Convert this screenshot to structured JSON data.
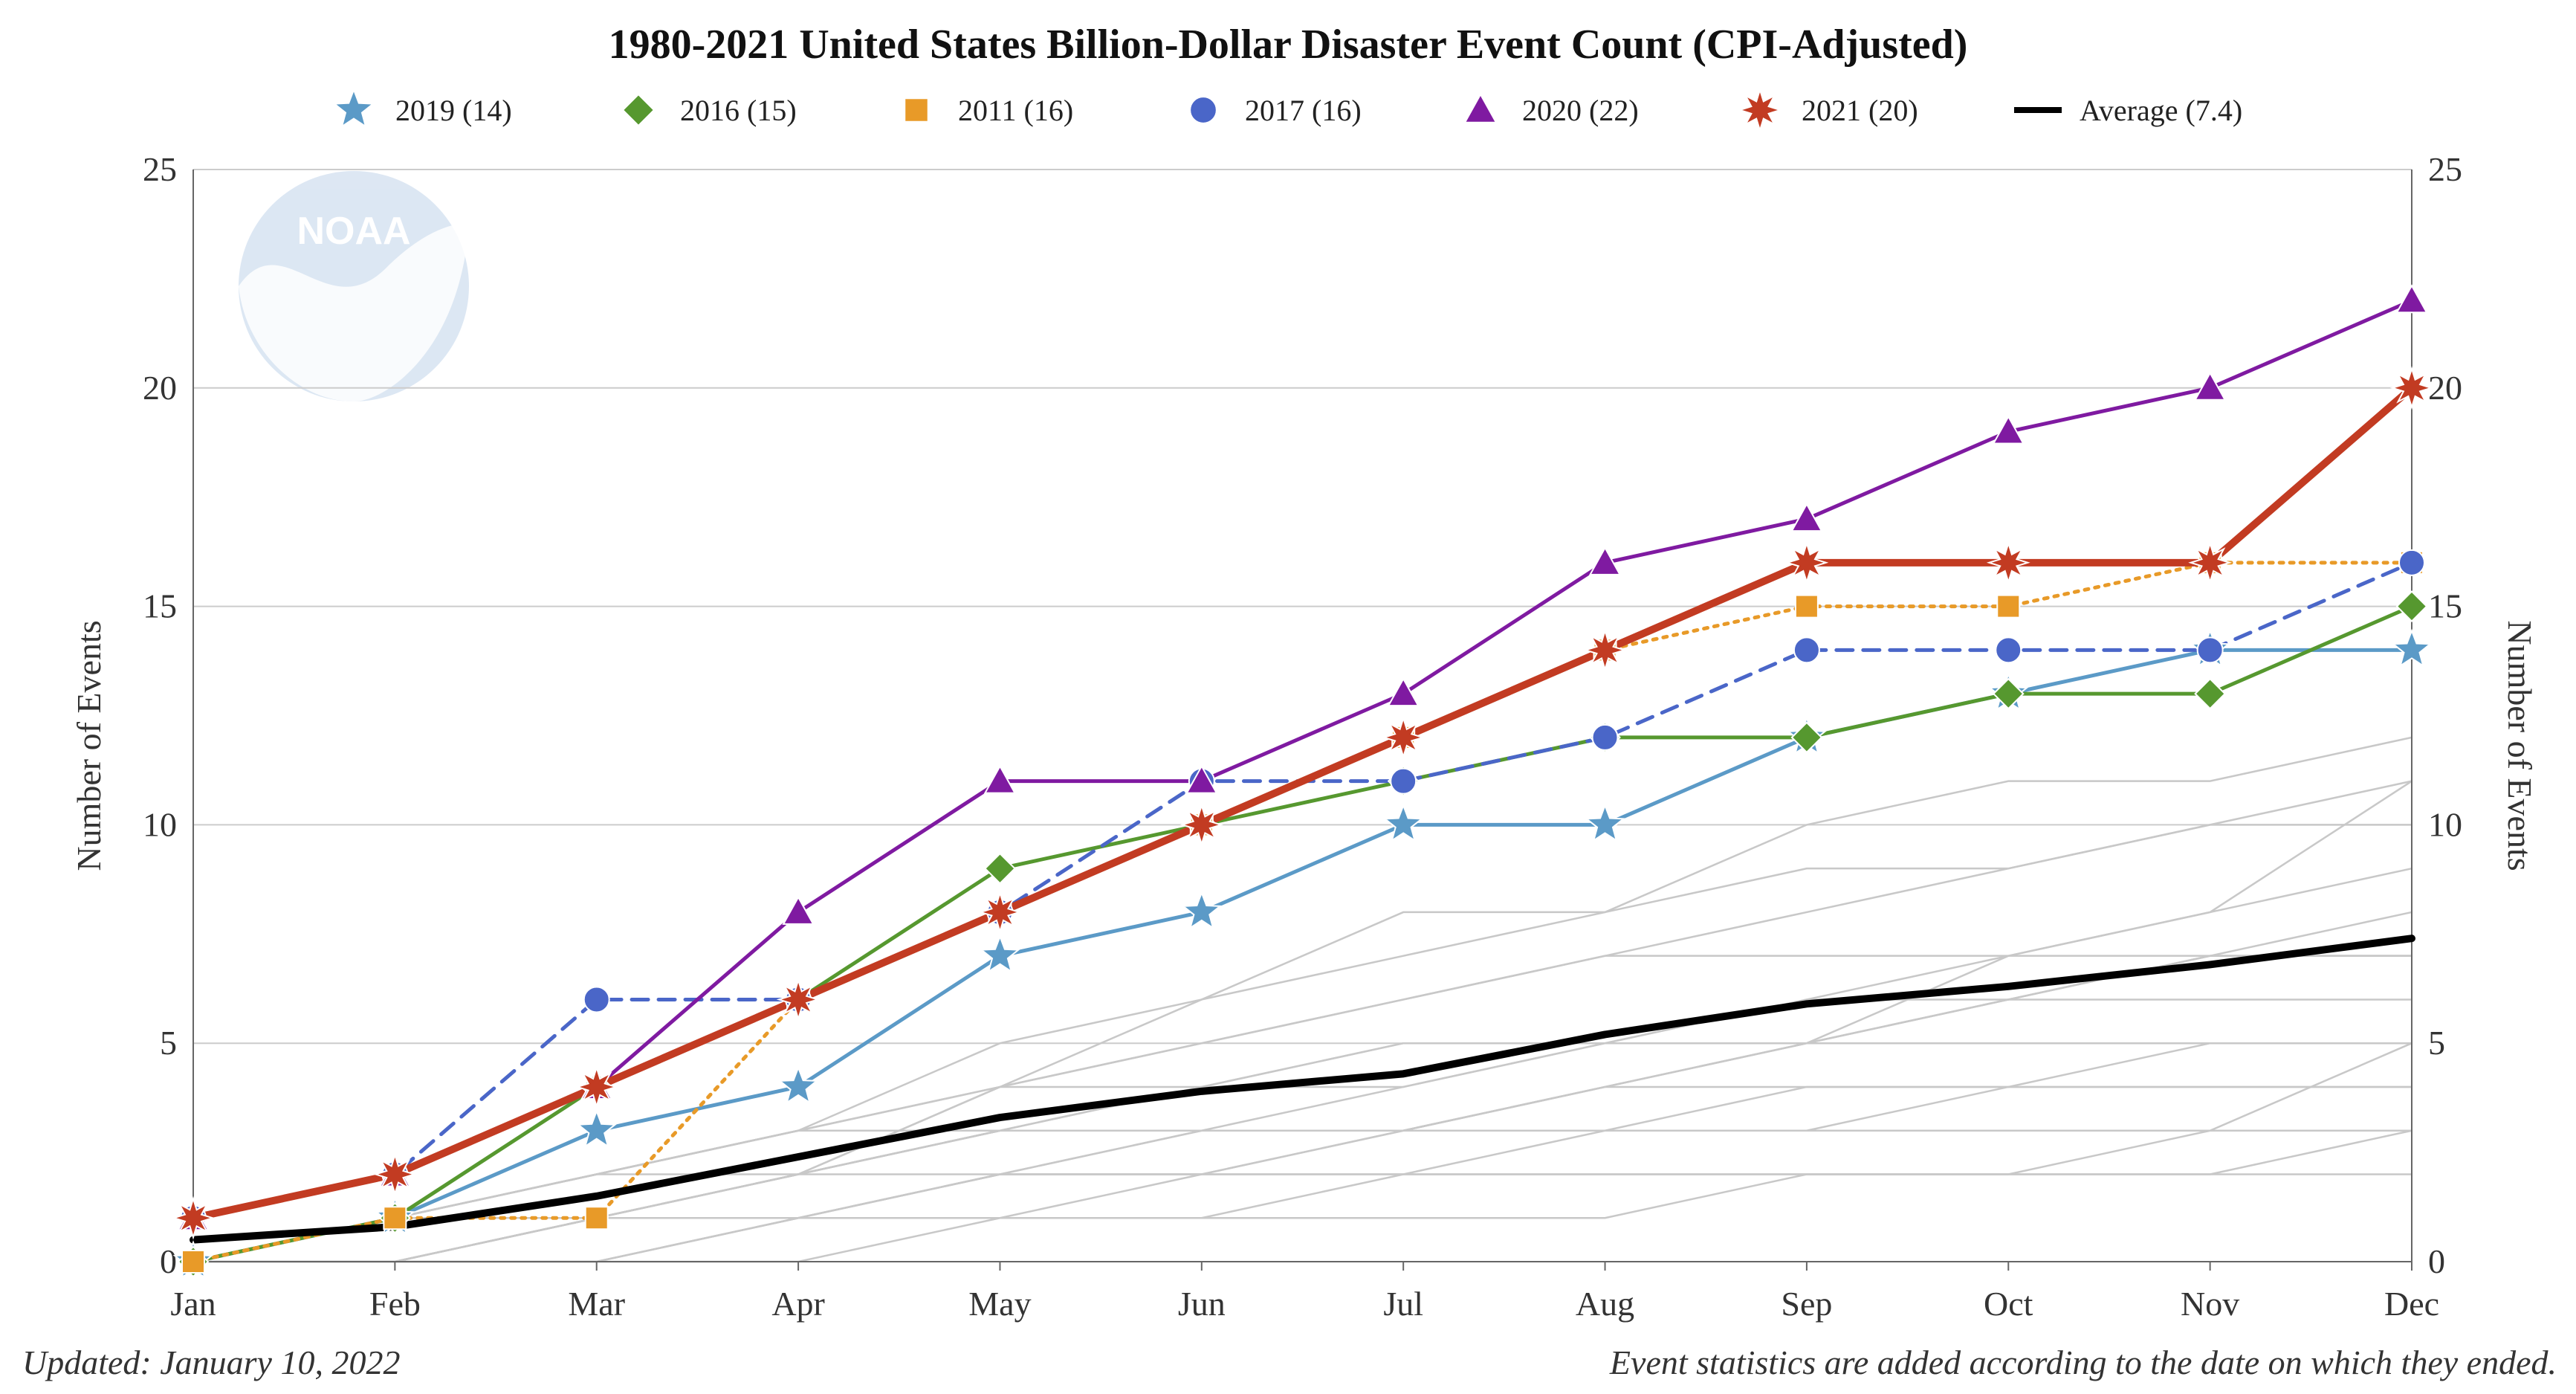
{
  "footer": {
    "updated": "Updated: January 10, 2022",
    "note": "Event statistics are added according to the date on which they ended."
  },
  "logo_text": "NOAA",
  "chart_data": {
    "type": "line",
    "title": "1980-2021 United States Billion-Dollar Disaster Event Count (CPI-Adjusted)",
    "ylabel": "Number of Events",
    "y2label": "Number of Events",
    "xlabel": "",
    "x": [
      "Jan",
      "Feb",
      "Mar",
      "Apr",
      "May",
      "Jun",
      "Jul",
      "Aug",
      "Sep",
      "Oct",
      "Nov",
      "Dec"
    ],
    "ylim": [
      0,
      25
    ],
    "yticks": [
      0,
      5,
      10,
      15,
      20,
      25
    ],
    "grid": true,
    "legend_position": "top",
    "series": [
      {
        "name": "2019 (14)",
        "color": "#5b9ac7",
        "marker": "star",
        "dash": "solid",
        "width": "medium",
        "values": [
          0,
          1,
          3,
          4,
          7,
          8,
          10,
          10,
          12,
          13,
          14,
          14
        ]
      },
      {
        "name": "2016 (15)",
        "color": "#56982f",
        "marker": "diamond",
        "dash": "solid",
        "width": "medium",
        "values": [
          0,
          1,
          4,
          6,
          9,
          10,
          11,
          12,
          12,
          13,
          13,
          15
        ]
      },
      {
        "name": "2011 (16)",
        "color": "#e89a28",
        "marker": "square",
        "dash": "dotted",
        "width": "medium",
        "values": [
          0,
          1,
          1,
          6,
          8,
          10,
          12,
          14,
          15,
          15,
          16,
          16
        ]
      },
      {
        "name": "2017 (16)",
        "color": "#4a66c8",
        "marker": "circle",
        "dash": "dashed",
        "width": "medium",
        "values": [
          1,
          2,
          6,
          6,
          8,
          11,
          11,
          12,
          14,
          14,
          14,
          16
        ]
      },
      {
        "name": "2020 (22)",
        "color": "#7f1aa1",
        "marker": "triangle",
        "dash": "solid",
        "width": "medium",
        "values": [
          1,
          2,
          4,
          8,
          11,
          11,
          13,
          16,
          17,
          19,
          20,
          22
        ]
      },
      {
        "name": "2021 (20)",
        "color": "#c23b22",
        "marker": "burst",
        "dash": "solid",
        "width": "thick",
        "values": [
          1,
          2,
          4,
          6,
          8,
          10,
          12,
          14,
          16,
          16,
          16,
          20
        ]
      },
      {
        "name": "Average (7.4)",
        "color": "#000000",
        "marker": "none",
        "dash": "solid",
        "width": "thick",
        "values": [
          0.5,
          0.8,
          1.5,
          2.4,
          3.3,
          3.9,
          4.3,
          5.2,
          5.9,
          6.3,
          6.8,
          7.4
        ]
      }
    ],
    "background_series_color": "#c8c8c8",
    "background_series": [
      [
        0,
        0,
        0,
        1,
        1,
        1,
        2,
        2,
        2,
        2,
        3,
        3
      ],
      [
        0,
        0,
        1,
        1,
        2,
        2,
        2,
        3,
        3,
        4,
        4,
        4
      ],
      [
        0,
        0,
        0,
        0,
        1,
        2,
        3,
        4,
        5,
        5,
        5,
        5
      ],
      [
        0,
        0,
        1,
        2,
        3,
        3,
        3,
        4,
        5,
        6,
        6,
        6
      ],
      [
        0,
        1,
        1,
        2,
        3,
        4,
        4,
        5,
        5,
        6,
        7,
        7
      ],
      [
        0,
        0,
        0,
        1,
        2,
        2,
        3,
        4,
        5,
        6,
        7,
        8
      ],
      [
        0,
        1,
        2,
        3,
        4,
        5,
        6,
        7,
        7,
        7,
        8,
        9
      ],
      [
        0,
        0,
        1,
        2,
        4,
        5,
        6,
        7,
        8,
        9,
        10,
        11
      ],
      [
        0,
        1,
        2,
        3,
        5,
        6,
        7,
        8,
        10,
        11,
        11,
        12
      ],
      [
        0,
        0,
        1,
        2,
        4,
        6,
        8,
        8,
        9,
        9,
        10,
        10
      ],
      [
        0,
        1,
        1,
        2,
        3,
        4,
        5,
        5,
        6,
        6,
        7,
        7
      ],
      [
        0,
        0,
        0,
        1,
        2,
        3,
        4,
        5,
        6,
        7,
        8,
        11
      ],
      [
        0,
        1,
        2,
        3,
        4,
        4,
        5,
        5,
        5,
        7,
        7,
        7
      ],
      [
        0,
        0,
        1,
        2,
        3,
        3,
        3,
        3,
        4,
        4,
        5,
        5
      ],
      [
        0,
        1,
        2,
        3,
        3,
        3,
        3,
        3,
        3,
        3,
        3,
        3
      ],
      [
        0,
        0,
        1,
        1,
        2,
        2,
        2,
        2,
        2,
        2,
        2,
        2
      ],
      [
        0,
        1,
        2,
        2,
        3,
        3,
        3,
        3,
        3,
        3,
        3,
        5
      ],
      [
        0,
        0,
        1,
        1,
        1,
        1,
        1,
        1,
        2,
        2,
        2,
        3
      ],
      [
        0,
        1,
        2,
        3,
        3,
        3,
        3,
        3,
        3,
        3,
        3,
        3
      ],
      [
        0,
        0,
        1,
        2,
        2,
        3,
        3,
        4,
        4,
        4,
        4,
        4
      ]
    ]
  }
}
